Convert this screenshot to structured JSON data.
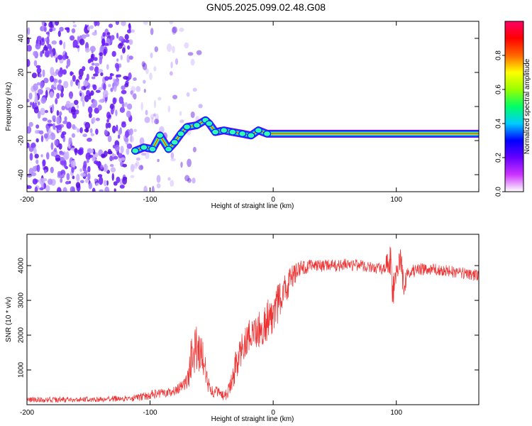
{
  "figure": {
    "title": "GN05.2025.099.02.48.G08"
  },
  "chart_data": [
    {
      "type": "heatmap",
      "xlabel": "Height of straight line (km)",
      "ylabel": "Frequency (Hz)",
      "xlim": [
        -200,
        167
      ],
      "ylim": [
        -50,
        50
      ],
      "x_ticks": [
        -200,
        -100,
        0,
        100
      ],
      "y_ticks": [
        -40,
        -20,
        0,
        20,
        40
      ],
      "grid": false,
      "colorbar": {
        "label": "Normalized spectral amplitude",
        "range": [
          0,
          1
        ],
        "ticks": [
          0.0,
          0.2,
          0.4,
          0.6,
          0.8
        ],
        "colors": [
          "#ffffff",
          "#cc33ff",
          "#6600ff",
          "#0000ff",
          "#00ccff",
          "#00ff66",
          "#99ff00",
          "#ffff00",
          "#ff6600",
          "#ff0000",
          "#ff0066"
        ]
      },
      "noise_region_x": [
        -200,
        -58
      ],
      "ridge": [
        {
          "x": -112,
          "y": -26
        },
        {
          "x": -105,
          "y": -24
        },
        {
          "x": -98,
          "y": -25
        },
        {
          "x": -92,
          "y": -17
        },
        {
          "x": -85,
          "y": -25
        },
        {
          "x": -80,
          "y": -21
        },
        {
          "x": -75,
          "y": -16
        },
        {
          "x": -70,
          "y": -12
        },
        {
          "x": -62,
          "y": -11
        },
        {
          "x": -55,
          "y": -8
        },
        {
          "x": -52,
          "y": -10
        },
        {
          "x": -47,
          "y": -15
        },
        {
          "x": -40,
          "y": -14
        },
        {
          "x": -33,
          "y": -15
        },
        {
          "x": -25,
          "y": -16
        },
        {
          "x": -18,
          "y": -17
        },
        {
          "x": -12,
          "y": -14
        },
        {
          "x": -5,
          "y": -16
        },
        {
          "x": 20,
          "y": -16
        },
        {
          "x": 80,
          "y": -16
        },
        {
          "x": 130,
          "y": -16
        },
        {
          "x": 167,
          "y": -16
        }
      ]
    },
    {
      "type": "line",
      "xlabel": "Height of straight line (km)",
      "ylabel": "SNR (10 * v/v)",
      "xlim": [
        -200,
        167
      ],
      "ylim": [
        0,
        4900
      ],
      "x_ticks": [
        -200,
        -100,
        0,
        100
      ],
      "y_ticks": [
        1000,
        2000,
        3000,
        4000
      ],
      "grid": false,
      "series": [
        {
          "color": "#ee3333",
          "x": [
            -200,
            -180,
            -160,
            -140,
            -120,
            -110,
            -100,
            -90,
            -80,
            -75,
            -70,
            -66,
            -63,
            -60,
            -57,
            -54,
            -51,
            -48,
            -45,
            -42,
            -39,
            -36,
            -33,
            -30,
            -27,
            -25,
            -22,
            -18,
            -14,
            -10,
            -6,
            -2,
            2,
            6,
            10,
            14,
            18,
            22,
            26,
            30,
            40,
            50,
            60,
            70,
            80,
            90,
            95,
            97,
            100,
            103,
            106,
            110,
            120,
            130,
            140,
            150,
            160,
            167
          ],
          "y": [
            150,
            140,
            150,
            160,
            180,
            200,
            280,
            350,
            400,
            500,
            650,
            1400,
            1650,
            1550,
            1500,
            700,
            400,
            350,
            350,
            300,
            250,
            450,
            700,
            1200,
            1400,
            1700,
            1850,
            2000,
            2200,
            2200,
            2400,
            2500,
            2800,
            3000,
            3300,
            3600,
            3800,
            3900,
            3950,
            4000,
            4000,
            4000,
            4020,
            4000,
            3980,
            3900,
            4200,
            3300,
            3700,
            4100,
            3500,
            3800,
            3900,
            3900,
            3850,
            3800,
            3750,
            3700
          ],
          "noise": [
            80,
            80,
            80,
            80,
            90,
            100,
            130,
            140,
            150,
            180,
            250,
            700,
            650,
            600,
            600,
            300,
            200,
            180,
            180,
            150,
            150,
            250,
            400,
            500,
            500,
            450,
            500,
            500,
            550,
            550,
            600,
            600,
            600,
            550,
            500,
            400,
            300,
            250,
            220,
            200,
            180,
            180,
            180,
            170,
            170,
            200,
            500,
            600,
            300,
            500,
            400,
            200,
            180,
            170,
            170,
            170,
            170,
            170
          ]
        }
      ]
    }
  ]
}
